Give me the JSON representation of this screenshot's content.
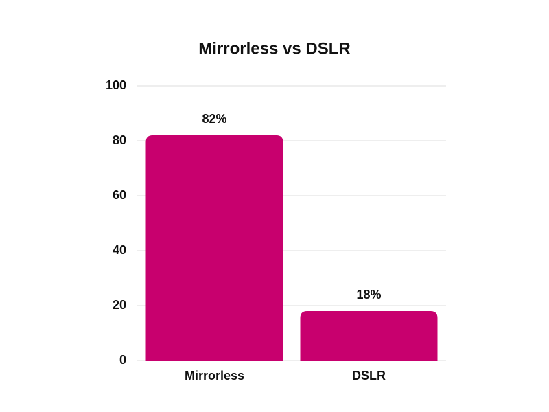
{
  "chart_data": {
    "type": "bar",
    "title": "Mirrorless vs DSLR",
    "categories": [
      "Mirrorless",
      "DSLR"
    ],
    "values": [
      82,
      18
    ],
    "value_labels": [
      "82%",
      "18%"
    ],
    "color": "#c8006e",
    "ylim": [
      0,
      100
    ],
    "yticks": [
      0,
      20,
      40,
      60,
      80,
      100
    ],
    "grid": true
  }
}
